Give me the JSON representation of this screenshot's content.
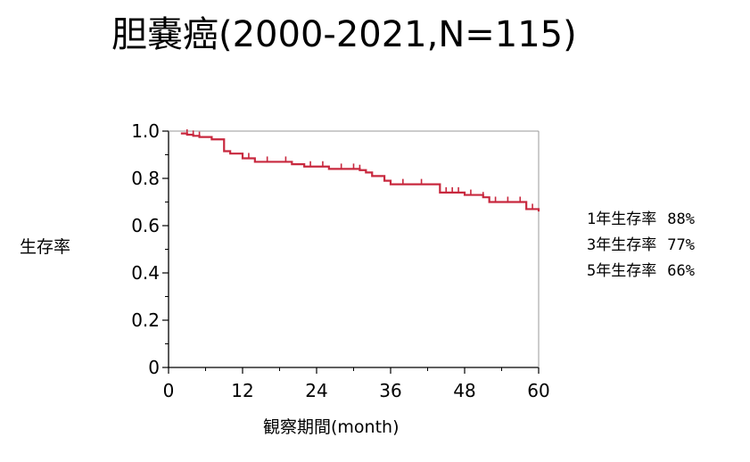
{
  "title": "胆嚢癌(2000-2021,N=115)",
  "chart_data": {
    "type": "line",
    "title": "胆嚢癌(2000-2021,N=115)",
    "xlabel": "観察期間(month)",
    "ylabel": "生存率",
    "xlim": [
      0,
      60
    ],
    "ylim": [
      0,
      1.0
    ],
    "x_ticks": [
      0,
      12,
      24,
      36,
      48,
      60
    ],
    "y_ticks": [
      0,
      0.2,
      0.4,
      0.6,
      0.8,
      1.0
    ],
    "y_tick_labels": [
      "0",
      "0.2",
      "0.4",
      "0.6",
      "0.8",
      "1.0"
    ],
    "grid": false,
    "line_color": "#c8283e",
    "series": [
      {
        "step_type": "post",
        "x": [
          2,
          3,
          4,
          5,
          7,
          9,
          10,
          12,
          14,
          18,
          20,
          22,
          26,
          31,
          32,
          33,
          35,
          36,
          44,
          48,
          51,
          52,
          58,
          60
        ],
        "y": [
          0.99,
          0.985,
          0.98,
          0.975,
          0.965,
          0.915,
          0.905,
          0.885,
          0.87,
          0.87,
          0.86,
          0.85,
          0.84,
          0.835,
          0.825,
          0.81,
          0.79,
          0.775,
          0.74,
          0.73,
          0.72,
          0.7,
          0.67,
          0.66
        ],
        "censor_x": [
          3,
          4,
          5,
          13,
          16,
          19,
          23,
          25,
          28,
          30,
          31,
          35,
          38,
          41,
          45,
          46,
          47,
          49,
          51,
          53,
          55,
          57,
          59
        ]
      }
    ]
  },
  "stats": [
    {
      "label": "1年生存率",
      "value": "88%"
    },
    {
      "label": "3年生存率",
      "value": "77%"
    },
    {
      "label": "5年生存率",
      "value": "66%"
    }
  ]
}
